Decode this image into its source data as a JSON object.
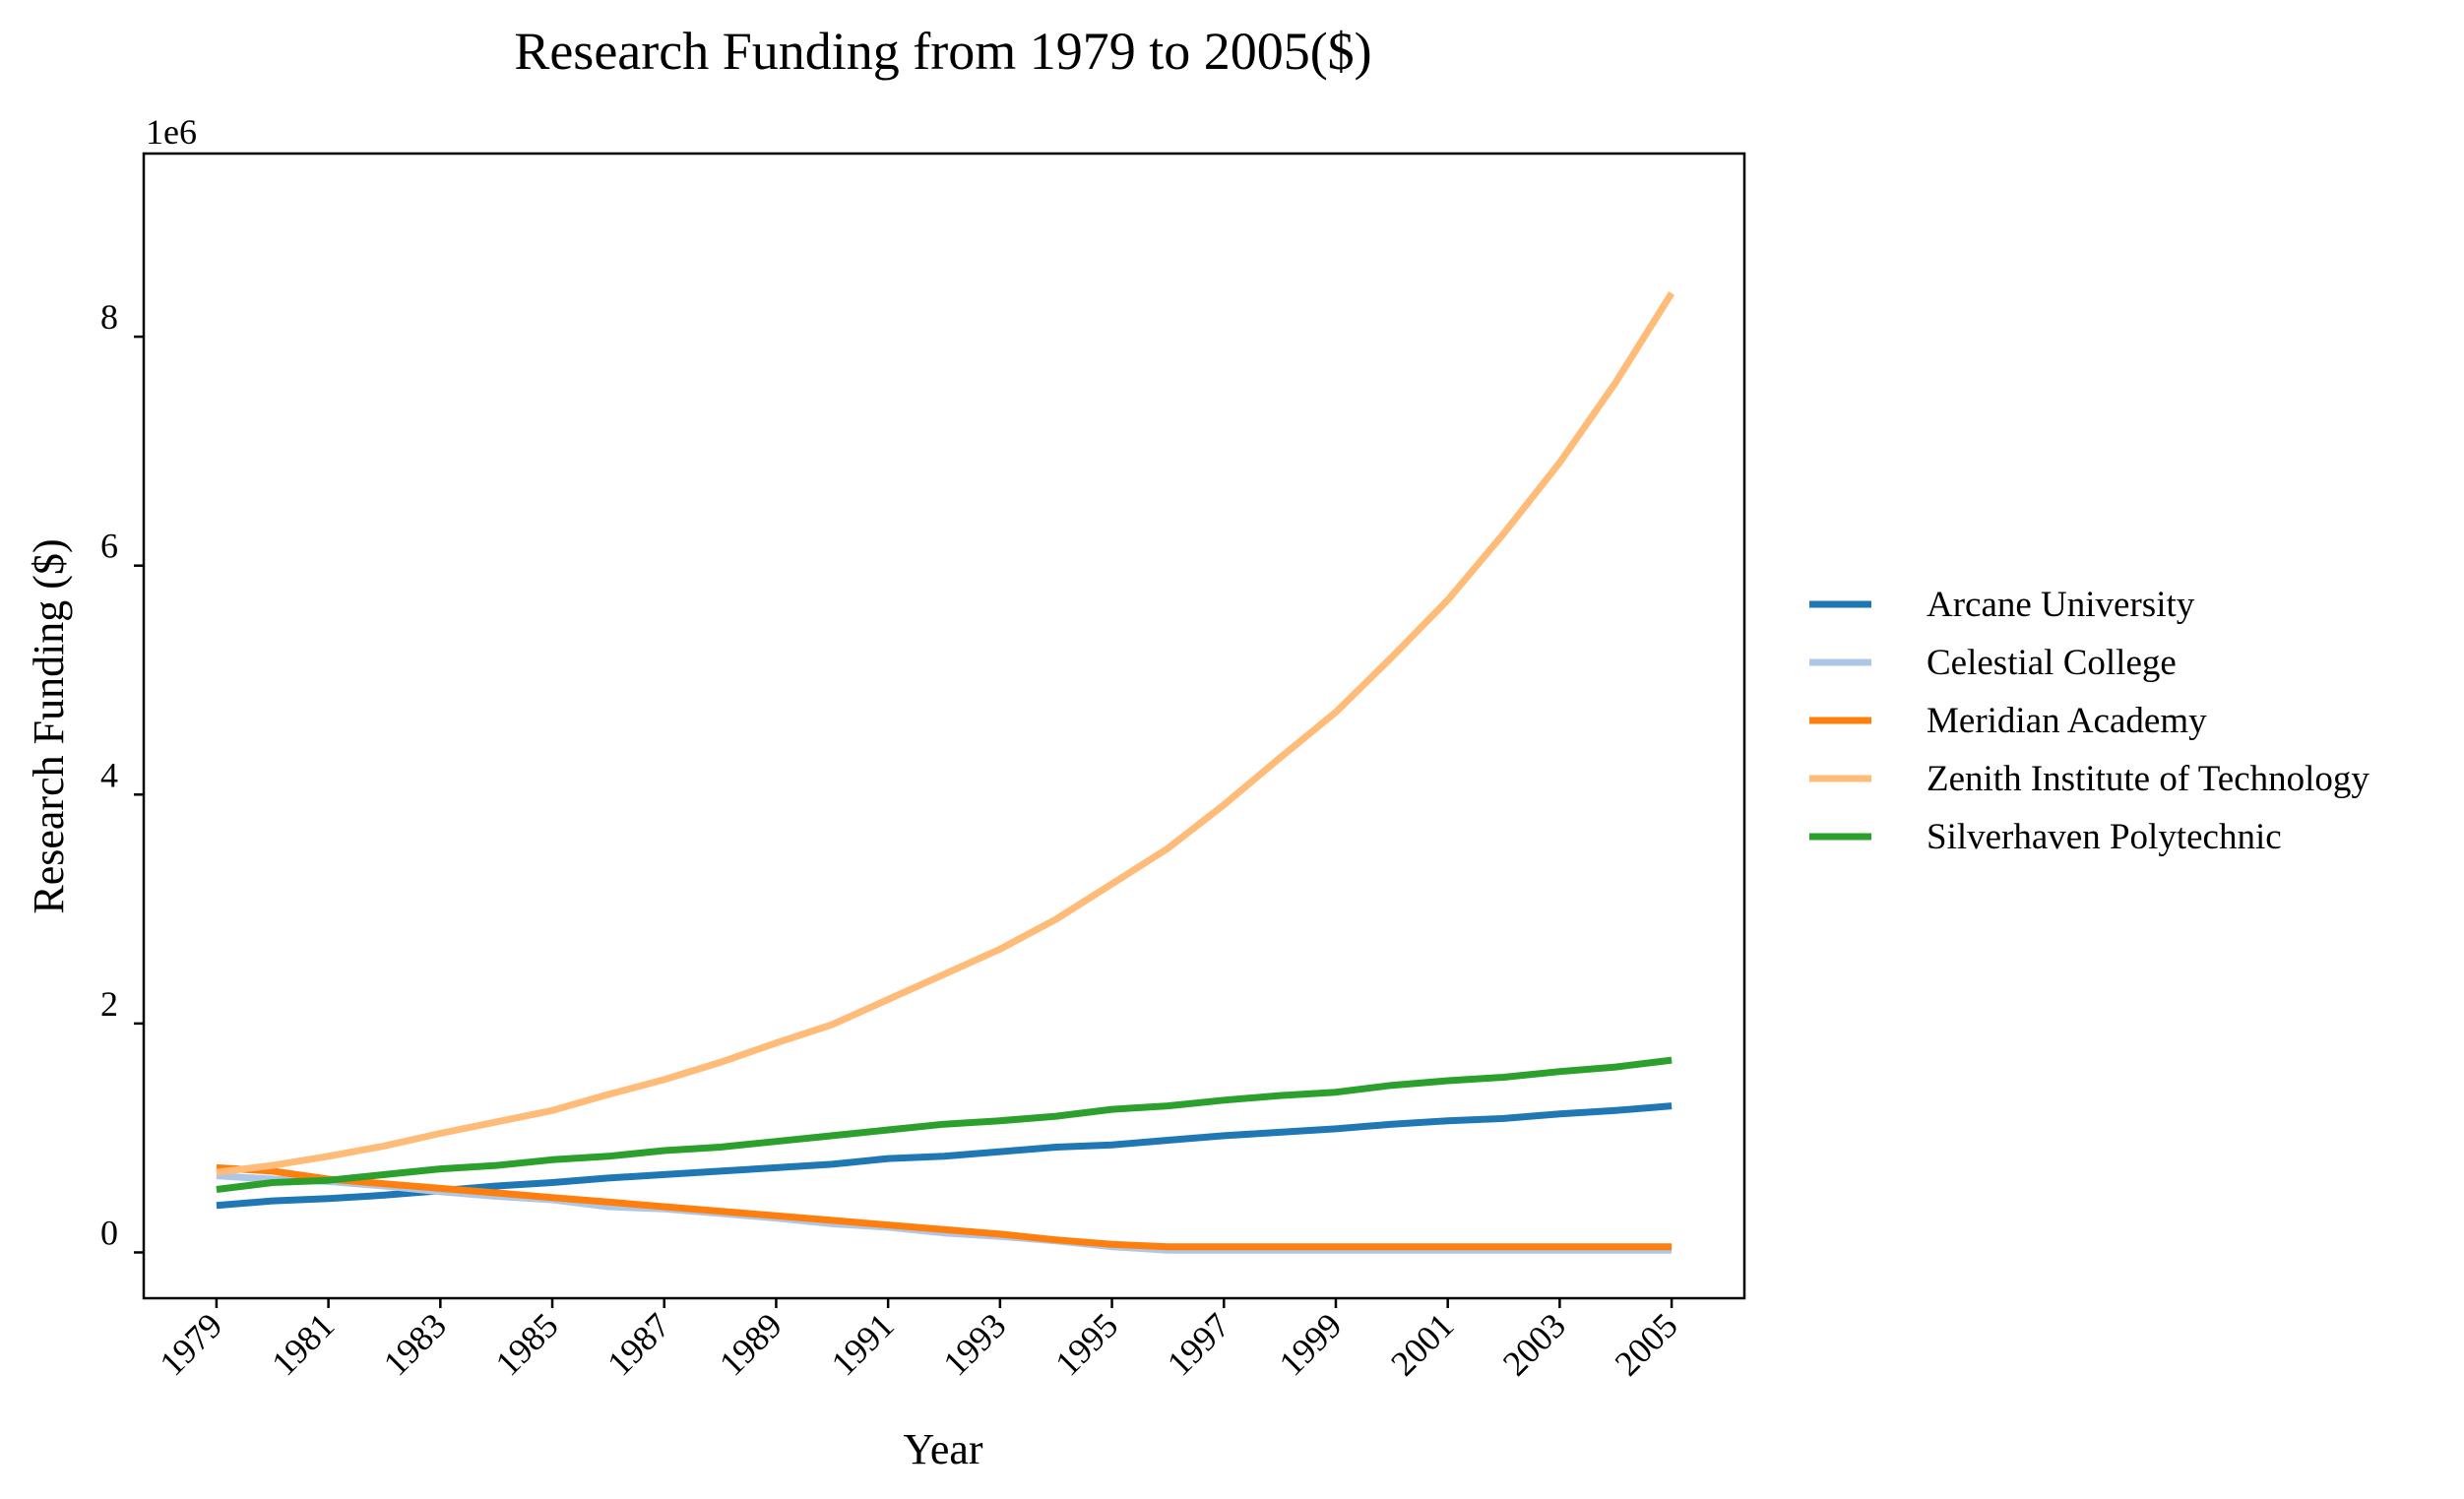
{
  "chart_data": {
    "type": "line",
    "title": "Research Funding from 1979 to 2005($)",
    "xlabel": "Year",
    "ylabel": "Research Funding ($)",
    "y_offset_label": "1e6",
    "y_scale": 1000000,
    "xlim": [
      1977.7,
      2006.3
    ],
    "ylim": [
      -400000,
      9600000
    ],
    "x_ticks": [
      1979,
      1981,
      1983,
      1985,
      1987,
      1989,
      1991,
      1993,
      1995,
      1997,
      1999,
      2001,
      2003,
      2005
    ],
    "y_ticks": [
      0,
      2000000,
      4000000,
      6000000,
      8000000
    ],
    "y_tick_labels": [
      "0",
      "2",
      "4",
      "6",
      "8"
    ],
    "grid": false,
    "legend_position": "right",
    "x": [
      1979,
      1980,
      1981,
      1982,
      1983,
      1984,
      1985,
      1986,
      1987,
      1988,
      1989,
      1990,
      1991,
      1992,
      1993,
      1994,
      1995,
      1996,
      1997,
      1998,
      1999,
      2000,
      2001,
      2002,
      2003,
      2004,
      2005
    ],
    "series": [
      {
        "name": "Arcane University",
        "color": "#1f77b4",
        "values": [
          410000,
          450000,
          470000,
          500000,
          540000,
          580000,
          610000,
          650000,
          680000,
          710000,
          740000,
          770000,
          820000,
          840000,
          880000,
          920000,
          940000,
          980000,
          1020000,
          1050000,
          1080000,
          1120000,
          1150000,
          1170000,
          1210000,
          1240000,
          1280000
        ]
      },
      {
        "name": "Celestial College",
        "color": "#aec7e8",
        "values": [
          670000,
          640000,
          620000,
          580000,
          530000,
          490000,
          460000,
          400000,
          380000,
          340000,
          300000,
          250000,
          220000,
          170000,
          140000,
          100000,
          50000,
          20000,
          20000,
          20000,
          20000,
          20000,
          20000,
          20000,
          20000,
          20000,
          20000
        ]
      },
      {
        "name": "Meridian Academy",
        "color": "#ff7f0e",
        "values": [
          740000,
          710000,
          640000,
          600000,
          560000,
          520000,
          480000,
          440000,
          400000,
          360000,
          320000,
          280000,
          240000,
          200000,
          160000,
          110000,
          70000,
          50000,
          50000,
          50000,
          50000,
          50000,
          50000,
          50000,
          50000,
          50000,
          50000
        ]
      },
      {
        "name": "Zenith Institute of Technology",
        "color": "#ffbb78",
        "values": [
          700000,
          760000,
          840000,
          930000,
          1040000,
          1140000,
          1240000,
          1380000,
          1510000,
          1660000,
          1830000,
          1990000,
          2210000,
          2430000,
          2650000,
          2910000,
          3220000,
          3530000,
          3910000,
          4320000,
          4720000,
          5200000,
          5700000,
          6280000,
          6900000,
          7600000,
          8380000
        ]
      },
      {
        "name": "Silverhaven Polytechnic",
        "color": "#2ca02c",
        "values": [
          550000,
          610000,
          630000,
          680000,
          730000,
          760000,
          810000,
          840000,
          890000,
          920000,
          970000,
          1020000,
          1070000,
          1120000,
          1150000,
          1190000,
          1250000,
          1280000,
          1330000,
          1370000,
          1400000,
          1460000,
          1500000,
          1530000,
          1580000,
          1620000,
          1680000
        ]
      }
    ]
  }
}
